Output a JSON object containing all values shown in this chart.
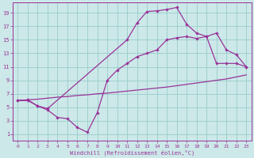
{
  "bg_color": "#cce8e8",
  "grid_color": "#99cccc",
  "line_color": "#993399",
  "spine_color": "#993399",
  "xlim": [
    -0.5,
    23.5
  ],
  "ylim": [
    0,
    20.5
  ],
  "xticks": [
    0,
    1,
    2,
    3,
    4,
    5,
    6,
    7,
    8,
    9,
    10,
    11,
    12,
    13,
    14,
    15,
    16,
    17,
    18,
    19,
    20,
    21,
    22,
    23
  ],
  "yticks": [
    1,
    3,
    5,
    7,
    9,
    11,
    13,
    15,
    17,
    19
  ],
  "xlabel": "Windchill (Refroidissement éolien,°C)",
  "line1_x": [
    0,
    1,
    2,
    3,
    4,
    5,
    6,
    7,
    8,
    9,
    10,
    11,
    12,
    13,
    14,
    15,
    16,
    17,
    18,
    19,
    20,
    21,
    22,
    23
  ],
  "line1_y": [
    6.0,
    6.1,
    6.2,
    6.35,
    6.5,
    6.6,
    6.75,
    6.85,
    7.0,
    7.1,
    7.25,
    7.4,
    7.55,
    7.7,
    7.85,
    8.0,
    8.2,
    8.4,
    8.6,
    8.8,
    9.0,
    9.2,
    9.5,
    9.8
  ],
  "line2_x": [
    0,
    1,
    2,
    3,
    11,
    12,
    13,
    14,
    15,
    16,
    17,
    18,
    19,
    20,
    21,
    22,
    23
  ],
  "line2_y": [
    6.0,
    6.1,
    5.2,
    4.8,
    15.0,
    17.5,
    19.2,
    19.3,
    19.5,
    19.8,
    17.3,
    16.0,
    15.5,
    16.0,
    13.5,
    12.8,
    11.0
  ],
  "line3_x": [
    0,
    1,
    2,
    3,
    4,
    5,
    6,
    7,
    8,
    9,
    10,
    11,
    12,
    13,
    14,
    15,
    16,
    17,
    18,
    19,
    20,
    21,
    22,
    23
  ],
  "line3_y": [
    6.0,
    6.0,
    5.2,
    4.6,
    3.5,
    3.3,
    2.0,
    1.3,
    4.2,
    9.0,
    10.5,
    11.5,
    12.5,
    13.0,
    13.5,
    15.0,
    15.3,
    15.5,
    15.2,
    15.5,
    11.5,
    11.5,
    11.5,
    11.0
  ]
}
